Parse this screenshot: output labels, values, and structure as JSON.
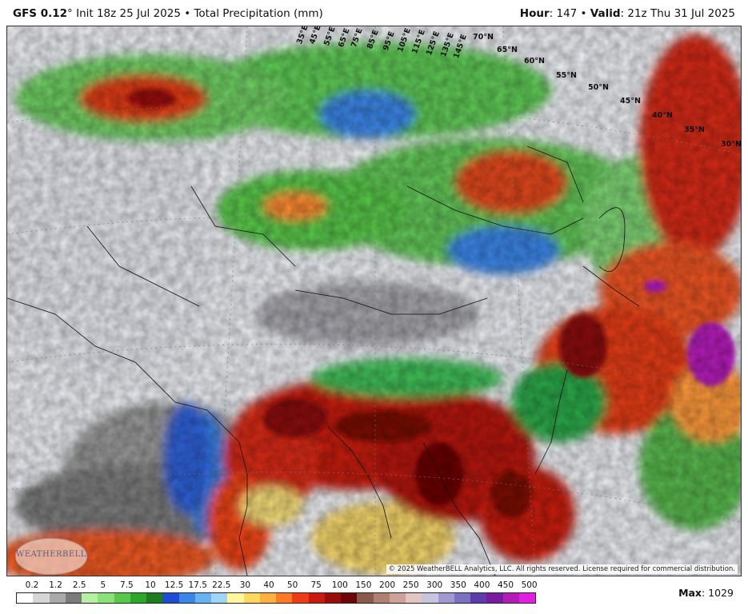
{
  "header": {
    "model": "GFS 0.12",
    "degree": "°",
    "init_text": " Init 18z 25 Jul 2025 • Total Precipitation (mm)",
    "hour_label": "Hour",
    "hour_value": ": 147 • ",
    "valid_label": "Valid",
    "valid_value": ": 21z Thu 31 Jul 2025"
  },
  "map": {
    "copyright": "© 2025 WeatherBELL Analytics, LLC. All rights reserved. License required for commercial distribution.",
    "logo_text": "WEATHERBELL",
    "lat_labels": [
      "70°N",
      "65°N",
      "60°N",
      "55°N",
      "50°N",
      "45°N",
      "40°N",
      "35°N",
      "30°N"
    ],
    "lon_labels": [
      "35°E",
      "45°E",
      "55°E",
      "65°E",
      "75°E",
      "85°E",
      "95°E",
      "105°E",
      "115°E",
      "125°E",
      "135°E",
      "145°E"
    ]
  },
  "legend": {
    "ticks": [
      "0.2",
      "1.2",
      "2.5",
      "5",
      "7.5",
      "10",
      "12.5",
      "17.5",
      "22.5",
      "30",
      "40",
      "50",
      "75",
      "100",
      "150",
      "200",
      "250",
      "300",
      "350",
      "400",
      "450",
      "500"
    ],
    "colors": [
      "#ffffff",
      "#d6d6d6",
      "#a9a9a9",
      "#7b7b7b",
      "#b7f0a4",
      "#8ee07a",
      "#58c84a",
      "#2ea62a",
      "#1e7c1e",
      "#1e4ad4",
      "#3a86e8",
      "#69b2f2",
      "#9fd6f6",
      "#fff6a0",
      "#ffd860",
      "#ffb040",
      "#ff7a26",
      "#f03c16",
      "#c81a0e",
      "#9a0c0a",
      "#6a0606",
      "#8a5a4a",
      "#b08070",
      "#cca29a",
      "#e4c6c0",
      "#c8c4e0",
      "#a09ad0",
      "#7c70c0",
      "#5c3ca8",
      "#7a1aa0",
      "#b41ab8",
      "#e020e0"
    ],
    "max_label": "Max",
    "max_value": ": 1029"
  }
}
